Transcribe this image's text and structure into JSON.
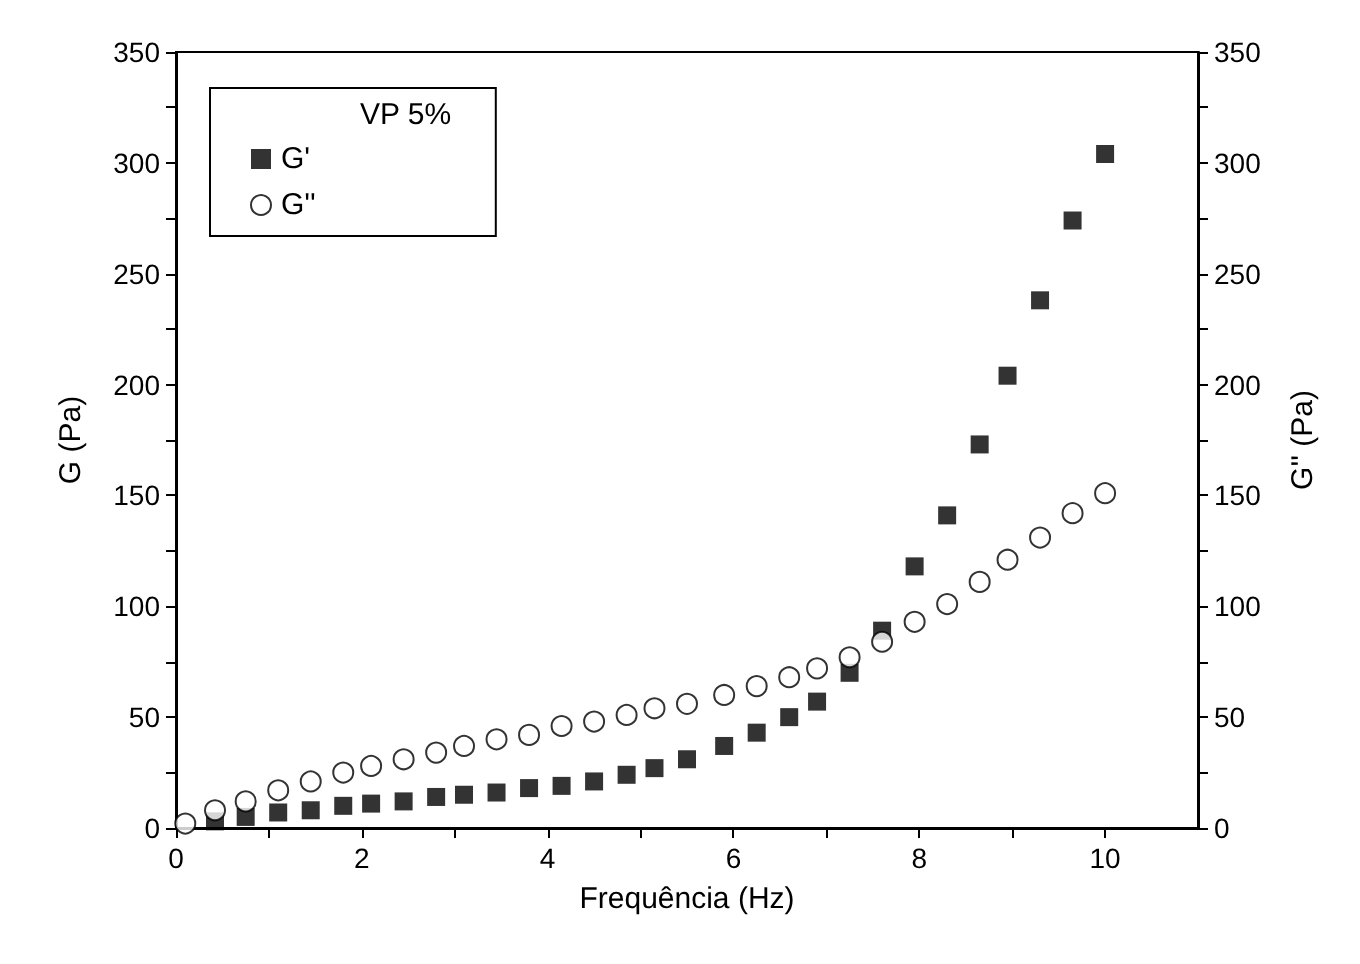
{
  "chart_data": {
    "type": "scatter",
    "xlabel": "Frequência (Hz)",
    "ylabel": "G (Pa)",
    "y2label": "G'' (Pa)",
    "legend_title": "VP 5%",
    "legend": "top left",
    "grid": false,
    "xlim": [
      0,
      11
    ],
    "xticks": [
      0,
      {
        "value": 1,
        "label": null
      },
      2,
      {
        "value": 3,
        "label": null
      },
      4,
      {
        "value": 5,
        "label": null
      },
      6,
      {
        "value": 7,
        "label": null
      },
      8,
      {
        "value": 9,
        "label": null
      },
      10
    ],
    "ylim": [
      0,
      350
    ],
    "yticks": [
      0,
      {
        "value": 25,
        "label": null
      },
      50,
      {
        "value": 75,
        "label": null
      },
      100,
      {
        "value": 125,
        "label": null
      },
      150,
      {
        "value": 175,
        "label": null
      },
      200,
      {
        "value": 225,
        "label": null
      },
      250,
      {
        "value": 275,
        "label": null
      },
      300,
      {
        "value": 325,
        "label": null
      },
      350
    ],
    "y2lim": [
      0,
      350
    ],
    "y2ticks": [
      0,
      {
        "value": 25,
        "label": null
      },
      50,
      {
        "value": 75,
        "label": null
      },
      100,
      {
        "value": 125,
        "label": null
      },
      150,
      {
        "value": 175,
        "label": null
      },
      200,
      {
        "value": 225,
        "label": null
      },
      250,
      {
        "value": 275,
        "label": null
      },
      300,
      {
        "value": 325,
        "label": null
      },
      350
    ],
    "series": [
      {
        "name": "G'",
        "color": "#000000",
        "marker": "square",
        "x": [
          0.42,
          0.75,
          1.1,
          1.45,
          1.8,
          2.1,
          2.45,
          2.8,
          3.1,
          3.45,
          3.8,
          4.15,
          4.5,
          4.85,
          5.15,
          5.5,
          5.9,
          6.25,
          6.6,
          6.9,
          7.25,
          7.6,
          7.95,
          8.3,
          8.65,
          8.95,
          9.3,
          9.65,
          10
        ],
        "values": [
          3,
          5,
          7,
          8,
          10,
          11,
          12,
          14,
          15,
          16,
          18,
          19,
          21,
          24,
          27,
          31,
          37,
          43,
          50,
          57,
          70,
          89,
          118,
          141,
          173,
          204,
          238,
          274,
          304
        ]
      },
      {
        "name": "G''",
        "color": "#000000",
        "marker": "circle",
        "x": [
          0.1,
          0.42,
          0.75,
          1.1,
          1.45,
          1.8,
          2.1,
          2.45,
          2.8,
          3.1,
          3.45,
          3.8,
          4.15,
          4.5,
          4.85,
          5.15,
          5.5,
          5.9,
          6.25,
          6.6,
          6.9,
          7.25,
          7.6,
          7.95,
          8.3,
          8.65,
          8.95,
          9.3,
          9.65,
          10
        ],
        "values": [
          2,
          8,
          12,
          17,
          21,
          25,
          28,
          31,
          34,
          37,
          40,
          42,
          46,
          48,
          51,
          54,
          56,
          60,
          64,
          68,
          72,
          77,
          84,
          93,
          101,
          111,
          121,
          131,
          142,
          151
        ]
      }
    ]
  }
}
